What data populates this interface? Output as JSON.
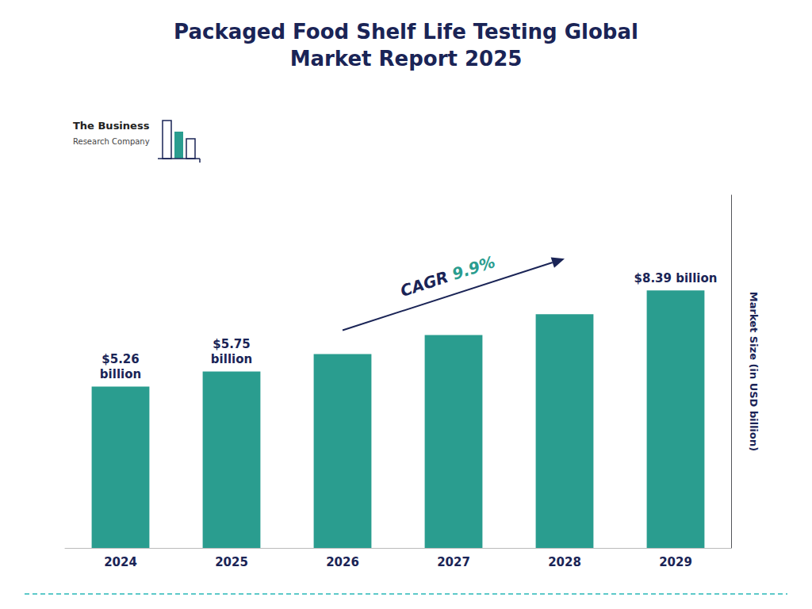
{
  "chart_data": {
    "type": "bar",
    "title": "Packaged Food Shelf Life Testing Global\nMarket Report 2025",
    "categories": [
      "2024",
      "2025",
      "2026",
      "2027",
      "2028",
      "2029"
    ],
    "values": [
      5.26,
      5.75,
      6.32,
      6.94,
      7.62,
      8.39
    ],
    "value_labels": [
      "$5.26\nbillion",
      "$5.75\nbillion",
      null,
      null,
      null,
      "$8.39 billion"
    ],
    "data_labels": true,
    "color": "#2a9d8f",
    "ylabel": "Market Size (in USD billion)",
    "ylim": [
      0,
      11.5
    ],
    "yticks": [],
    "tick_labels": "x",
    "grid": false,
    "annotations": [
      "CAGR",
      "9.9%",
      "The Business",
      "Research Company"
    ]
  }
}
